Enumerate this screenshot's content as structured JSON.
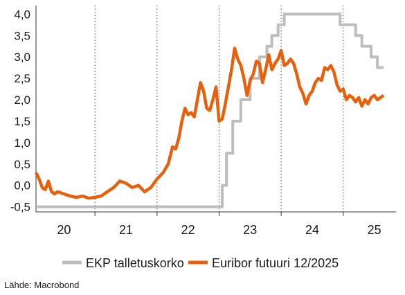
{
  "chart_data": {
    "type": "line",
    "title": "",
    "xlabel": "",
    "ylabel": "",
    "xlim": [
      2019.55,
      2025.35
    ],
    "ylim": [
      -0.62,
      4.2
    ],
    "y_ticks": [
      -0.5,
      0.0,
      0.5,
      1.0,
      1.5,
      2.0,
      2.5,
      3.0,
      3.5,
      4.0
    ],
    "y_tick_labels": [
      "-0,5",
      "0,0",
      "0,5",
      "1,0",
      "1,5",
      "2,0",
      "2,5",
      "3,0",
      "3,5",
      "4,0"
    ],
    "x_ticks": [
      2020.0,
      2021.0,
      2022.0,
      2023.0,
      2024.0,
      2025.0
    ],
    "x_tick_labels": [
      "20",
      "21",
      "22",
      "23",
      "24",
      "25"
    ],
    "x_year_boundaries": [
      2020.5,
      2021.5,
      2022.5,
      2023.5,
      2024.5
    ],
    "grid": "vertical dotted at year boundaries",
    "legend_position": "bottom",
    "series": [
      {
        "name": "EKP talletuskorko",
        "color": "#bdbdbd",
        "step": true,
        "x": [
          2019.55,
          2022.55,
          2022.62,
          2022.72,
          2022.85,
          2023.0,
          2023.15,
          2023.27,
          2023.35,
          2023.45,
          2023.55,
          2023.7,
          2024.45,
          2024.7,
          2024.8,
          2024.95,
          2025.05,
          2025.15
        ],
        "y": [
          -0.5,
          0.0,
          0.75,
          1.5,
          2.0,
          2.5,
          3.0,
          3.25,
          3.5,
          3.75,
          4.0,
          4.0,
          3.75,
          3.5,
          3.25,
          3.0,
          2.75,
          2.75
        ]
      },
      {
        "name": "Euribor futuuri 12/2025",
        "color": "#e8600c",
        "step": false,
        "x": [
          2019.55,
          2019.6,
          2019.65,
          2019.7,
          2019.75,
          2019.8,
          2019.85,
          2019.9,
          2020.0,
          2020.1,
          2020.2,
          2020.3,
          2020.4,
          2020.5,
          2020.6,
          2020.7,
          2020.8,
          2020.9,
          2021.0,
          2021.1,
          2021.2,
          2021.3,
          2021.4,
          2021.5,
          2021.6,
          2021.68,
          2021.75,
          2021.8,
          2021.85,
          2021.9,
          2021.95,
          2022.0,
          2022.05,
          2022.1,
          2022.15,
          2022.2,
          2022.25,
          2022.3,
          2022.35,
          2022.4,
          2022.45,
          2022.5,
          2022.55,
          2022.6,
          2022.65,
          2022.7,
          2022.75,
          2022.8,
          2022.85,
          2022.9,
          2022.95,
          2023.0,
          2023.05,
          2023.1,
          2023.15,
          2023.2,
          2023.25,
          2023.3,
          2023.35,
          2023.4,
          2023.45,
          2023.5,
          2023.55,
          2023.6,
          2023.65,
          2023.7,
          2023.75,
          2023.8,
          2023.85,
          2023.9,
          2023.95,
          2024.0,
          2024.05,
          2024.1,
          2024.15,
          2024.2,
          2024.25,
          2024.3,
          2024.35,
          2024.4,
          2024.45,
          2024.5,
          2024.55,
          2024.6,
          2024.65,
          2024.7,
          2024.75,
          2024.8,
          2024.85,
          2024.9,
          2024.95,
          2025.0,
          2025.05,
          2025.1,
          2025.15
        ],
        "y": [
          0.3,
          0.15,
          -0.05,
          -0.1,
          0.1,
          -0.15,
          -0.2,
          -0.15,
          -0.2,
          -0.25,
          -0.28,
          -0.25,
          -0.3,
          -0.28,
          -0.25,
          -0.15,
          -0.05,
          0.1,
          0.05,
          -0.05,
          0.0,
          -0.15,
          -0.05,
          0.15,
          0.3,
          0.5,
          0.9,
          0.85,
          1.1,
          1.5,
          1.8,
          1.65,
          1.7,
          1.6,
          2.0,
          2.4,
          2.2,
          1.8,
          1.75,
          2.0,
          2.3,
          1.5,
          1.55,
          1.9,
          2.3,
          2.7,
          3.2,
          2.95,
          2.8,
          2.5,
          2.1,
          2.45,
          2.6,
          2.9,
          2.85,
          2.4,
          2.7,
          3.05,
          2.7,
          2.85,
          2.95,
          3.15,
          2.8,
          2.85,
          2.95,
          2.85,
          2.6,
          2.3,
          2.15,
          1.9,
          2.1,
          2.2,
          2.4,
          2.5,
          2.45,
          2.75,
          2.7,
          2.8,
          2.65,
          2.35,
          2.2,
          2.25,
          2.0,
          2.1,
          2.05,
          1.95,
          2.05,
          1.85,
          2.0,
          1.9,
          2.05,
          2.1,
          2.0,
          2.05,
          2.1
        ]
      }
    ]
  },
  "source_label": "Lähde: Macrobond"
}
